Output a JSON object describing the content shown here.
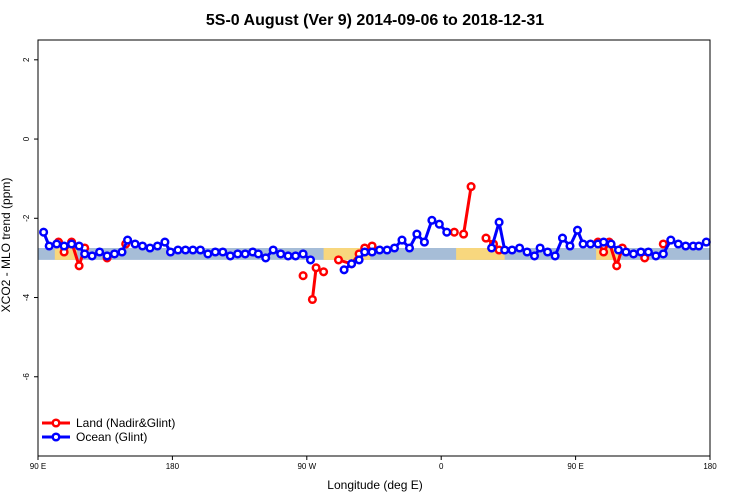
{
  "chart_data": {
    "type": "line",
    "title": "5S-0 August (Ver 9)   2014-09-06 to 2018-12-31",
    "xlabel": "Longitude (deg E)",
    "ylabel": "XCO2 - MLO trend (ppm)",
    "xlim": [
      90,
      450
    ],
    "ylim": [
      -8,
      2.5
    ],
    "x_ticks": [
      {
        "value": 90,
        "label": "90 E"
      },
      {
        "value": 162,
        "label": "180"
      },
      {
        "value": 234,
        "label": "90 W"
      },
      {
        "value": 306,
        "label": "0"
      },
      {
        "value": 378,
        "label": "90 E"
      },
      {
        "value": 450,
        "label": "180"
      }
    ],
    "y_ticks": [
      {
        "value": 2,
        "label": "2"
      },
      {
        "value": 0,
        "label": "0"
      },
      {
        "value": -2,
        "label": "-2"
      },
      {
        "value": -4,
        "label": "-4"
      },
      {
        "value": -6,
        "label": "-6"
      }
    ],
    "grid": false,
    "legend_position": "bottom-left",
    "band": {
      "y_min": -3.05,
      "y_max": -2.75,
      "color": "#a6bdd7"
    },
    "land_regions": [
      {
        "x_min": 99,
        "x_max": 111,
        "color": "#f8d77e"
      },
      {
        "x_min": 243,
        "x_max": 268,
        "color": "#f8d77e"
      },
      {
        "x_min": 314,
        "x_max": 340,
        "color": "#f8d77e"
      },
      {
        "x_min": 389,
        "x_max": 402,
        "color": "#f8d77e"
      }
    ],
    "series": [
      {
        "name": "Land (Nadir&Glint)",
        "color": "#ff0000",
        "segments": [
          {
            "x": [
              101,
              104,
              108,
              112,
              115
            ],
            "y": [
              -2.6,
              -2.85,
              -2.6,
              -3.2,
              -2.75
            ]
          },
          {
            "x": [
              127
            ],
            "y": [
              -3.0
            ]
          },
          {
            "x": [
              137
            ],
            "y": [
              -2.65
            ]
          },
          {
            "x": [
              232
            ],
            "y": [
              -3.45
            ]
          },
          {
            "x": [
              237,
              239,
              243
            ],
            "y": [
              -4.05,
              -3.25,
              -3.35
            ]
          },
          {
            "x": [
              251,
              258,
              262,
              265,
              269
            ],
            "y": [
              -3.05,
              -3.15,
              -2.9,
              -2.75,
              -2.7
            ]
          },
          {
            "x": [
              318,
              322
            ],
            "y": [
              -2.4,
              -1.2
            ]
          },
          {
            "x": [
              313
            ],
            "y": [
              -2.35
            ]
          },
          {
            "x": [
              330,
              334,
              337
            ],
            "y": [
              -2.5,
              -2.65,
              -2.8
            ]
          },
          {
            "x": [
              390,
              393,
              396,
              400,
              403
            ],
            "y": [
              -2.6,
              -2.85,
              -2.6,
              -3.2,
              -2.75
            ]
          },
          {
            "x": [
              415
            ],
            "y": [
              -3.0
            ]
          },
          {
            "x": [
              425
            ],
            "y": [
              -2.65
            ]
          }
        ]
      },
      {
        "name": "Ocean (Glint)",
        "color": "#0000ff",
        "segments": [
          {
            "x": [
              93,
              96,
              100,
              104,
              108,
              112,
              115,
              119,
              123,
              127,
              131,
              135,
              138,
              142,
              146,
              150,
              154,
              158,
              161,
              165,
              169,
              173,
              177,
              181,
              185,
              189,
              193,
              197,
              201,
              205,
              208,
              212,
              216,
              220,
              224,
              228,
              232,
              236
            ],
            "y": [
              -2.35,
              -2.7,
              -2.65,
              -2.7,
              -2.65,
              -2.7,
              -2.9,
              -2.95,
              -2.85,
              -2.95,
              -2.9,
              -2.85,
              -2.55,
              -2.65,
              -2.7,
              -2.75,
              -2.7,
              -2.6,
              -2.85,
              -2.8,
              -2.8,
              -2.8,
              -2.8,
              -2.9,
              -2.85,
              -2.85,
              -2.95,
              -2.9,
              -2.9,
              -2.85,
              -2.9,
              -3.0,
              -2.8,
              -2.9,
              -2.95,
              -2.95,
              -2.9,
              -3.05
            ]
          },
          {
            "x": [
              254,
              258,
              262,
              265,
              269,
              273,
              277,
              281,
              285,
              289,
              293,
              297,
              301,
              305,
              309
            ],
            "y": [
              -3.3,
              -3.15,
              -3.05,
              -2.85,
              -2.85,
              -2.8,
              -2.8,
              -2.75,
              -2.55,
              -2.75,
              -2.4,
              -2.6,
              -2.05,
              -2.15,
              -2.35
            ]
          },
          {
            "x": [
              333,
              337,
              340,
              344,
              348,
              352,
              356,
              359,
              363,
              367,
              371,
              375,
              379,
              382,
              386,
              390,
              393,
              397,
              401,
              405,
              409,
              413,
              417,
              421,
              425,
              429,
              433,
              437,
              441,
              444,
              448
            ],
            "y": [
              -2.75,
              -2.1,
              -2.8,
              -2.8,
              -2.75,
              -2.85,
              -2.95,
              -2.75,
              -2.85,
              -2.95,
              -2.5,
              -2.7,
              -2.3,
              -2.65,
              -2.65,
              -2.65,
              -2.6,
              -2.65,
              -2.8,
              -2.85,
              -2.9,
              -2.85,
              -2.85,
              -2.95,
              -2.9,
              -2.55,
              -2.65,
              -2.7,
              -2.7,
              -2.7,
              -2.6
            ]
          }
        ]
      }
    ]
  }
}
